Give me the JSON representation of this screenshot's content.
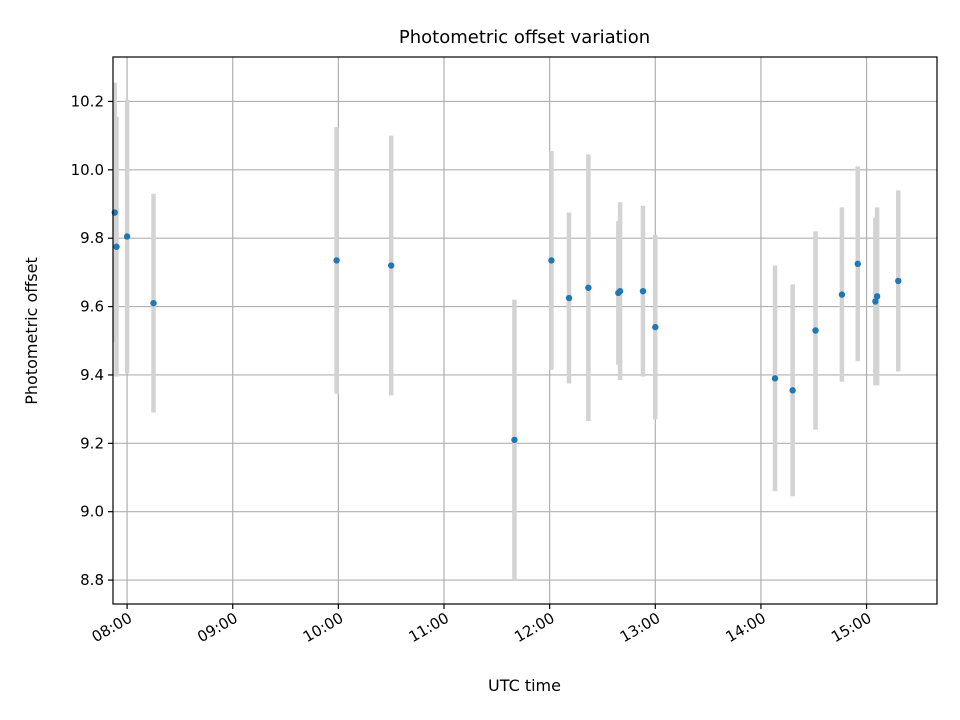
{
  "chart_data": {
    "type": "scatter",
    "title": "Photometric offset variation",
    "xlabel": "UTC time",
    "ylabel": "Photometric offset",
    "x_ticks": [
      "08:00",
      "09:00",
      "10:00",
      "11:00",
      "12:00",
      "13:00",
      "14:00",
      "15:00"
    ],
    "y_ticks": [
      "8.8",
      "9.0",
      "9.2",
      "9.4",
      "9.6",
      "9.8",
      "10.0",
      "10.2"
    ],
    "xlim": [
      "07:52",
      "15:40"
    ],
    "ylim": [
      8.73,
      10.33
    ],
    "grid": true,
    "legend": "none",
    "marker_color": "#1f77b4",
    "errorbar_color": "#d3d3d3",
    "points": [
      {
        "x": "07:53",
        "y": 9.875,
        "yerr": 0.38
      },
      {
        "x": "07:54",
        "y": 9.775,
        "yerr": 0.38
      },
      {
        "x": "08:00",
        "y": 9.805,
        "yerr": 0.4
      },
      {
        "x": "08:15",
        "y": 9.61,
        "yerr": 0.32
      },
      {
        "x": "09:59",
        "y": 9.735,
        "yerr": 0.39
      },
      {
        "x": "10:30",
        "y": 9.72,
        "yerr": 0.38
      },
      {
        "x": "11:40",
        "y": 9.21,
        "yerr": 0.41
      },
      {
        "x": "12:01",
        "y": 9.735,
        "yerr": 0.32
      },
      {
        "x": "12:11",
        "y": 9.625,
        "yerr": 0.25
      },
      {
        "x": "12:22",
        "y": 9.655,
        "yerr": 0.39
      },
      {
        "x": "12:39",
        "y": 9.64,
        "yerr": 0.21
      },
      {
        "x": "12:40",
        "y": 9.645,
        "yerr": 0.26
      },
      {
        "x": "12:53",
        "y": 9.645,
        "yerr": 0.25
      },
      {
        "x": "13:00",
        "y": 9.54,
        "yerr": 0.27
      },
      {
        "x": "14:08",
        "y": 9.39,
        "yerr": 0.33
      },
      {
        "x": "14:18",
        "y": 9.355,
        "yerr": 0.31
      },
      {
        "x": "14:31",
        "y": 9.53,
        "yerr": 0.29
      },
      {
        "x": "14:46",
        "y": 9.635,
        "yerr": 0.255
      },
      {
        "x": "14:55",
        "y": 9.725,
        "yerr": 0.285
      },
      {
        "x": "15:05",
        "y": 9.615,
        "yerr": 0.245
      },
      {
        "x": "15:06",
        "y": 9.63,
        "yerr": 0.26
      },
      {
        "x": "15:18",
        "y": 9.675,
        "yerr": 0.265
      }
    ]
  }
}
